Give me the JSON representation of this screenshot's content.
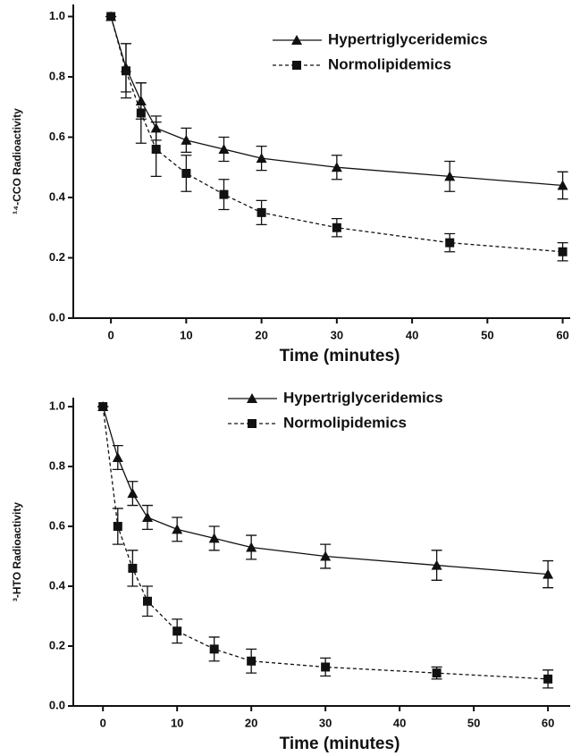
{
  "chart_data": [
    {
      "type": "line",
      "x_label": "Time (minutes)",
      "y_label": "¹⁴-CCO Radioactivity",
      "x": [
        0,
        2,
        4,
        6,
        10,
        15,
        20,
        30,
        45,
        60
      ],
      "series": [
        {
          "name": "Hypertriglyceridemics",
          "color": "#111111",
          "marker": "triangle",
          "dash": false,
          "values": [
            1.0,
            0.83,
            0.72,
            0.63,
            0.59,
            0.56,
            0.53,
            0.5,
            0.47,
            0.44
          ],
          "errors": [
            0,
            0.08,
            0.06,
            0.04,
            0.04,
            0.04,
            0.04,
            0.04,
            0.05,
            0.045
          ]
        },
        {
          "name": "Normolipidemics",
          "color": "#111111",
          "marker": "square",
          "dash": true,
          "values": [
            1.0,
            0.82,
            0.68,
            0.56,
            0.48,
            0.41,
            0.35,
            0.3,
            0.25,
            0.22
          ],
          "errors": [
            0,
            0.09,
            0.1,
            0.09,
            0.06,
            0.05,
            0.04,
            0.03,
            0.03,
            0.03
          ]
        }
      ],
      "xlim": [
        -5,
        61
      ],
      "ylim": [
        0,
        1.04
      ],
      "xticks": [
        0,
        10,
        20,
        30,
        40,
        50,
        60
      ],
      "yticks": [
        {
          "value": 0,
          "label": "0.0"
        },
        {
          "value": 0.2,
          "label": "0.2"
        },
        {
          "value": 0.4,
          "label": "0.4"
        },
        {
          "value": 0.6,
          "label": "0.6"
        },
        {
          "value": 0.8,
          "label": "0.8"
        },
        {
          "value": 1.0,
          "label": "1.0"
        }
      ],
      "legend": "upper right"
    },
    {
      "type": "line",
      "x_label": "Time (minutes)",
      "y_label": "³-HTO Radioactivity",
      "x": [
        0,
        2,
        4,
        6,
        10,
        15,
        20,
        30,
        45,
        60
      ],
      "series": [
        {
          "name": "Hypertriglyceridemics",
          "color": "#111111",
          "marker": "triangle",
          "dash": false,
          "values": [
            1.0,
            0.83,
            0.71,
            0.63,
            0.59,
            0.56,
            0.53,
            0.5,
            0.47,
            0.44
          ],
          "errors": [
            0,
            0.04,
            0.04,
            0.04,
            0.04,
            0.04,
            0.04,
            0.04,
            0.05,
            0.045
          ]
        },
        {
          "name": "Normolipidemics",
          "color": "#111111",
          "marker": "square",
          "dash": true,
          "values": [
            1.0,
            0.6,
            0.46,
            0.35,
            0.25,
            0.19,
            0.15,
            0.13,
            0.11,
            0.09
          ],
          "errors": [
            0,
            0.06,
            0.06,
            0.05,
            0.04,
            0.04,
            0.04,
            0.03,
            0.02,
            0.03
          ]
        }
      ],
      "xlim": [
        -4,
        63
      ],
      "ylim": [
        0,
        1.03
      ],
      "xticks": [
        0,
        10,
        20,
        30,
        40,
        50,
        60
      ],
      "yticks": [
        {
          "value": 0,
          "label": "0.0"
        },
        {
          "value": 0.2,
          "label": "0.2"
        },
        {
          "value": 0.4,
          "label": "0.4"
        },
        {
          "value": 0.6,
          "label": "0.6"
        },
        {
          "value": 0.8,
          "label": "0.8"
        },
        {
          "value": 1.0,
          "label": "1.0"
        }
      ],
      "legend": "upper right"
    }
  ]
}
